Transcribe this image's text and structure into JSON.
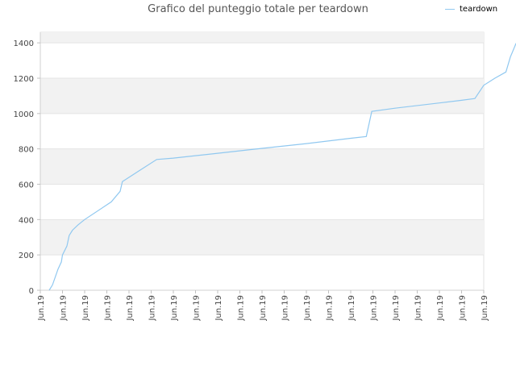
{
  "chart_data": {
    "type": "line",
    "title": "Grafico del punteggio totale per teardown",
    "xlabel": "",
    "ylabel": "",
    "ylim": [
      0,
      1460
    ],
    "yticks": [
      0,
      200,
      400,
      600,
      800,
      1000,
      1200,
      1400
    ],
    "x_ticks": [
      "Jun.19",
      "Jun.19",
      "Jun.19",
      "Jun.19",
      "Jun.19",
      "Jun.19",
      "Jun.19",
      "Jun.19",
      "Jun.19",
      "Jun.19",
      "Jun.19",
      "Jun.19",
      "Jun.19",
      "Jun.19",
      "Jun.19",
      "Jun.19",
      "Jun.19",
      "Jun.19",
      "Jun.19",
      "Jun.19",
      "Jun.19"
    ],
    "grid": "horizontal bands",
    "legend_position": "top-right",
    "series": [
      {
        "name": "teardown",
        "color": "#90c8f0",
        "points": [
          [
            0.4,
            0
          ],
          [
            0.55,
            30
          ],
          [
            0.8,
            120
          ],
          [
            0.95,
            160
          ],
          [
            1.0,
            200
          ],
          [
            1.2,
            250
          ],
          [
            1.3,
            310
          ],
          [
            1.45,
            340
          ],
          [
            1.7,
            370
          ],
          [
            2.0,
            400
          ],
          [
            3.2,
            500
          ],
          [
            3.6,
            560
          ],
          [
            3.7,
            615
          ],
          [
            4.5,
            680
          ],
          [
            5.25,
            740
          ],
          [
            6.0,
            748
          ],
          [
            8.0,
            775
          ],
          [
            10.0,
            803
          ],
          [
            12.0,
            830
          ],
          [
            14.0,
            860
          ],
          [
            14.7,
            870
          ],
          [
            14.95,
            1012
          ],
          [
            16.0,
            1030
          ],
          [
            18.0,
            1060
          ],
          [
            19.0,
            1075
          ],
          [
            19.6,
            1085
          ],
          [
            20.0,
            1160
          ],
          [
            20.5,
            1200
          ],
          [
            21.0,
            1235
          ],
          [
            21.2,
            1320
          ],
          [
            21.45,
            1395
          ],
          [
            21.5,
            1400
          ]
        ]
      }
    ]
  }
}
